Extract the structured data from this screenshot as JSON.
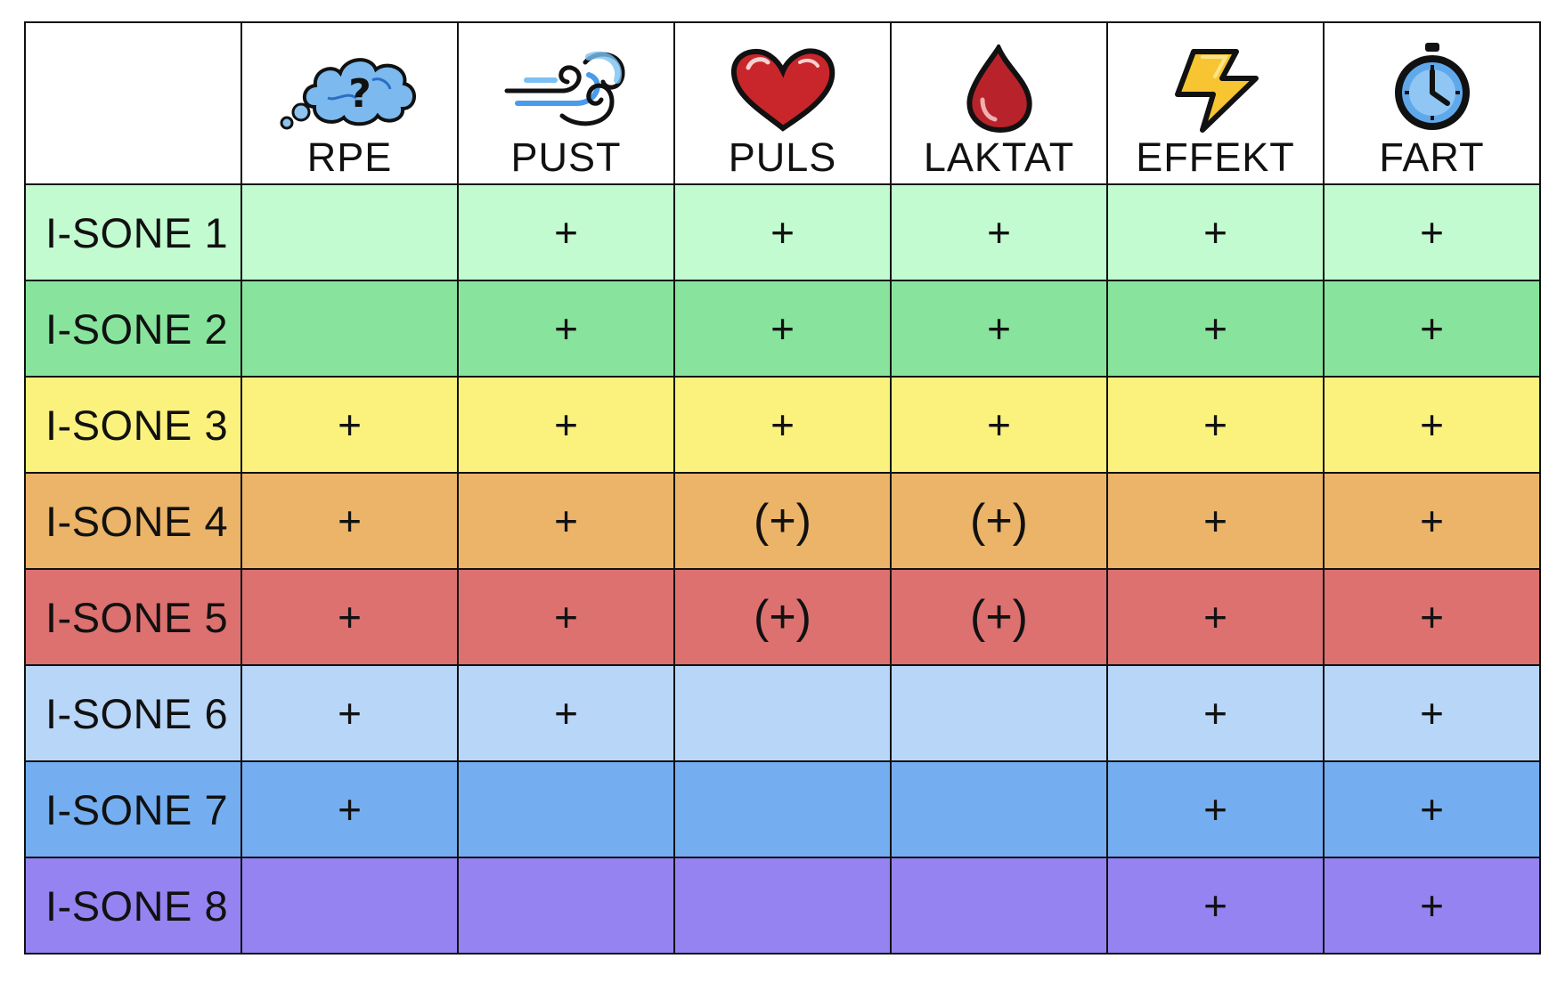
{
  "columns": [
    {
      "key": "rpe",
      "label": "RPE",
      "icon": "thought-cloud-question-icon"
    },
    {
      "key": "pust",
      "label": "PUST",
      "icon": "wind-swirl-icon"
    },
    {
      "key": "puls",
      "label": "PULS",
      "icon": "heart-icon"
    },
    {
      "key": "laktat",
      "label": "LAKTAT",
      "icon": "blood-drop-icon"
    },
    {
      "key": "effekt",
      "label": "EFFEKT",
      "icon": "lightning-bolt-icon"
    },
    {
      "key": "fart",
      "label": "FART",
      "icon": "stopwatch-icon"
    }
  ],
  "rows": [
    {
      "label": "I-SONE 1",
      "color": "#c2fbd0",
      "cells": [
        "",
        "+",
        "+",
        "+",
        "+",
        "+"
      ]
    },
    {
      "label": "I-SONE 2",
      "color": "#88e49d",
      "cells": [
        "",
        "+",
        "+",
        "+",
        "+",
        "+"
      ]
    },
    {
      "label": "I-SONE 3",
      "color": "#fbf27e",
      "cells": [
        "+",
        "+",
        "+",
        "+",
        "+",
        "+"
      ]
    },
    {
      "label": "I-SONE 4",
      "color": "#ebb468",
      "cells": [
        "+",
        "+",
        "(+)",
        "(+)",
        "+",
        "+"
      ]
    },
    {
      "label": "I-SONE 5",
      "color": "#dc7170",
      "cells": [
        "+",
        "+",
        "(+)",
        "(+)",
        "+",
        "+"
      ]
    },
    {
      "label": "I-SONE 6",
      "color": "#b8d6f8",
      "cells": [
        "+",
        "+",
        "",
        "",
        "+",
        "+"
      ]
    },
    {
      "label": "I-SONE 7",
      "color": "#75aef0",
      "cells": [
        "+",
        "",
        "",
        "",
        "+",
        "+"
      ]
    },
    {
      "label": "I-SONE 8",
      "color": "#9583f1",
      "cells": [
        "",
        "",
        "",
        "",
        "+",
        "+"
      ]
    }
  ]
}
